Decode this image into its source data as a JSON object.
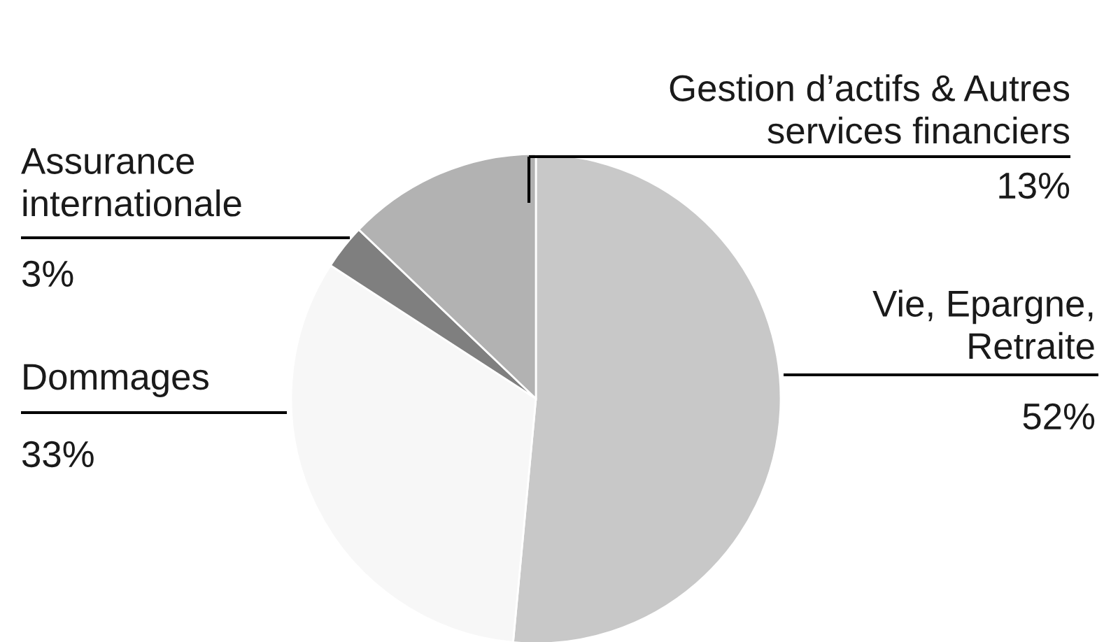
{
  "chart_data": {
    "type": "pie",
    "categories": [
      "Vie, Epargne,\nRetraite",
      "Dommages",
      "Assurance\ninternationale",
      "Gestion d’actifs & Autres\nservices financiers"
    ],
    "values": [
      52,
      33,
      3,
      13
    ],
    "colors": [
      "#c8c8c8",
      "#f7f7f7",
      "#7f7f7f",
      "#b2b2b2"
    ],
    "value_labels": [
      "52%",
      "33%",
      "3%",
      "13%"
    ]
  }
}
